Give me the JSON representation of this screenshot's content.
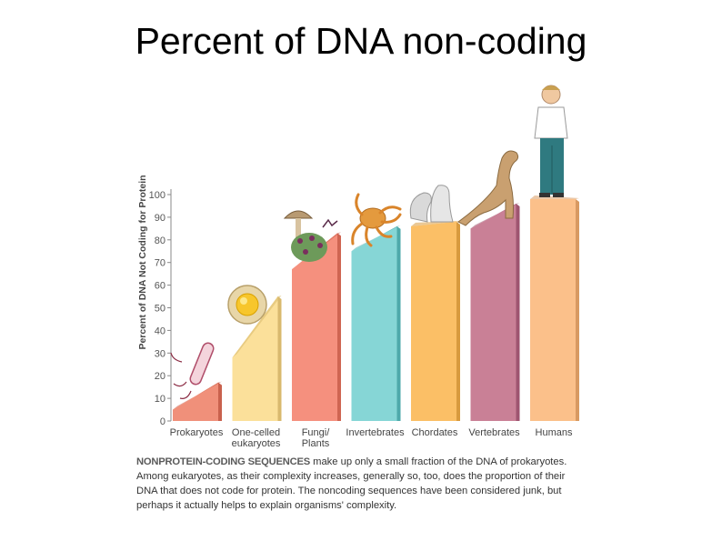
{
  "slide": {
    "title": "Percent of DNA non-coding"
  },
  "caption": {
    "lead": "NONPROTEIN-CODING SEQUENCES",
    "text": " make up only a small fraction of the DNA of prokaryotes. Among eukaryotes, as their complexity increases, generally so, too, does the proportion of their DNA that does not code for protein. The noncoding sequences have been considered junk, but perhaps it actually helps to explain organisms' complexity."
  },
  "chart_data": {
    "type": "bar",
    "title": "",
    "xlabel": "",
    "ylabel": "Percent of DNA Not Coding for Protein",
    "ylim": [
      0,
      100
    ],
    "yticks": [
      0,
      10,
      20,
      30,
      40,
      50,
      60,
      70,
      80,
      90,
      100
    ],
    "grid": false,
    "categories": [
      [
        "Prokaryotes"
      ],
      [
        "One-celled",
        "eukaryotes"
      ],
      [
        "Fungi/",
        "Plants"
      ],
      [
        "Invertebrates"
      ],
      [
        "Chordates"
      ],
      [
        "Vertebrates"
      ],
      [
        "Humans"
      ]
    ],
    "values_start": [
      5,
      28,
      67,
      75,
      86,
      85,
      98
    ],
    "values_end": [
      17,
      55,
      83,
      86,
      88,
      96,
      98
    ],
    "colors": [
      "#f0907a",
      "#fbe09a",
      "#f5907e",
      "#86d6d6",
      "#fbbf66",
      "#c98096",
      "#fbc08a"
    ],
    "side_colors": [
      "#c9614d",
      "#d9b96e",
      "#cf6552",
      "#4ea9ab",
      "#d89a3e",
      "#9e5570",
      "#d89a62"
    ]
  }
}
